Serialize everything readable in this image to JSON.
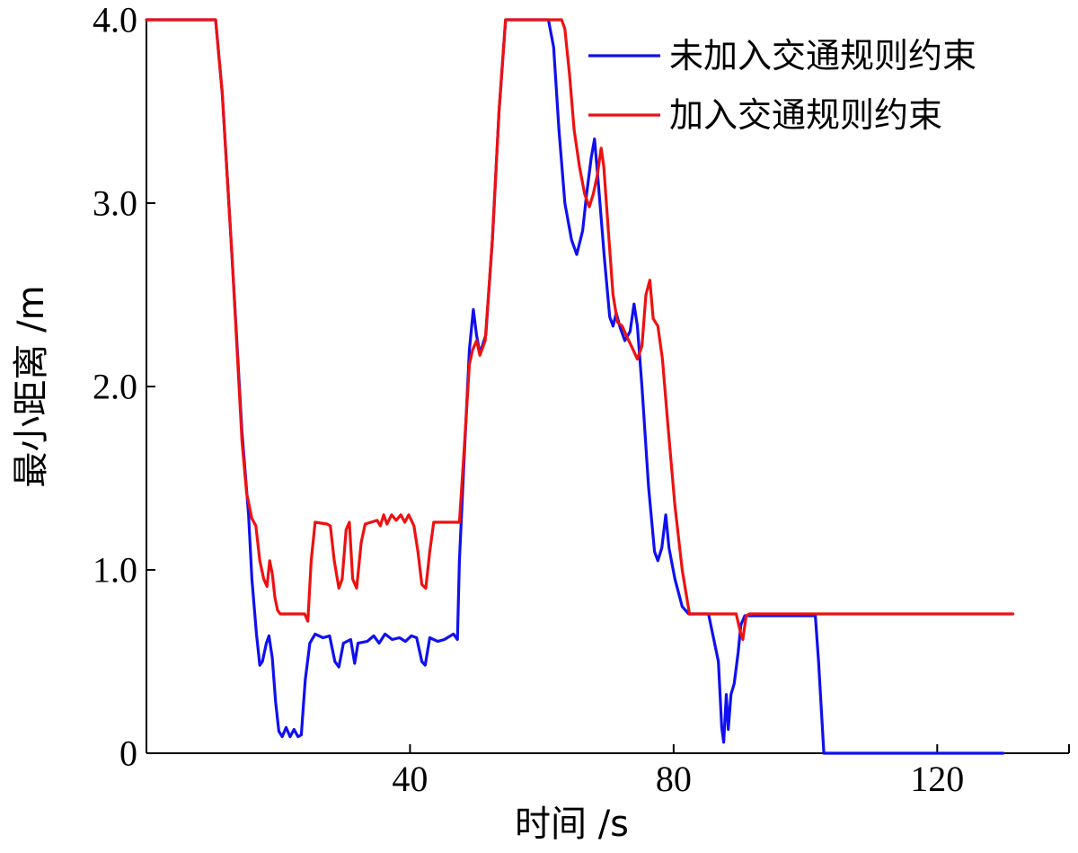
{
  "chart_data": {
    "type": "line",
    "xlabel": "时间 /s",
    "ylabel": "最小距离 /m",
    "xlim": [
      0,
      140
    ],
    "ylim": [
      0,
      4.0
    ],
    "x_ticks": [
      40,
      80,
      120
    ],
    "x_tick_labels": [
      "40",
      "80",
      "120"
    ],
    "y_ticks": [
      0,
      1.0,
      2.0,
      3.0,
      4.0
    ],
    "y_tick_labels": [
      "0",
      "1.0",
      "2.0",
      "3.0",
      "4.0"
    ],
    "grid": false,
    "legend_position": "top-right",
    "series": [
      {
        "name": "未加入交通规则约束",
        "color": "#1010f0",
        "points": [
          [
            0,
            4.0
          ],
          [
            10.5,
            4.0
          ],
          [
            11.5,
            3.6
          ],
          [
            13,
            2.7
          ],
          [
            14.5,
            1.75
          ],
          [
            15.5,
            1.3
          ],
          [
            16,
            0.95
          ],
          [
            16.7,
            0.65
          ],
          [
            17.2,
            0.48
          ],
          [
            17.6,
            0.5
          ],
          [
            18.2,
            0.6
          ],
          [
            18.6,
            0.64
          ],
          [
            19.1,
            0.52
          ],
          [
            19.6,
            0.28
          ],
          [
            20.1,
            0.12
          ],
          [
            20.6,
            0.09
          ],
          [
            21.2,
            0.14
          ],
          [
            21.8,
            0.09
          ],
          [
            22.4,
            0.13
          ],
          [
            23,
            0.09
          ],
          [
            23.5,
            0.1
          ],
          [
            24.1,
            0.4
          ],
          [
            24.8,
            0.6
          ],
          [
            25.6,
            0.65
          ],
          [
            26.8,
            0.63
          ],
          [
            27.8,
            0.64
          ],
          [
            28.6,
            0.5
          ],
          [
            29.2,
            0.47
          ],
          [
            29.9,
            0.6
          ],
          [
            31,
            0.62
          ],
          [
            31.6,
            0.49
          ],
          [
            32.1,
            0.6
          ],
          [
            33.5,
            0.61
          ],
          [
            34.5,
            0.64
          ],
          [
            35.3,
            0.6
          ],
          [
            36.2,
            0.65
          ],
          [
            37.3,
            0.62
          ],
          [
            38.4,
            0.63
          ],
          [
            39.3,
            0.61
          ],
          [
            40.2,
            0.64
          ],
          [
            41,
            0.63
          ],
          [
            41.8,
            0.5
          ],
          [
            42.3,
            0.48
          ],
          [
            43,
            0.63
          ],
          [
            44.2,
            0.61
          ],
          [
            45.2,
            0.62
          ],
          [
            46.6,
            0.65
          ],
          [
            47.2,
            0.62
          ],
          [
            47.5,
            1.05
          ],
          [
            48.2,
            1.6
          ],
          [
            49,
            2.2
          ],
          [
            49.6,
            2.42
          ],
          [
            50.1,
            2.28
          ],
          [
            50.6,
            2.18
          ],
          [
            51.5,
            2.28
          ],
          [
            52.5,
            2.8
          ],
          [
            53.5,
            3.5
          ],
          [
            54.5,
            4.0
          ],
          [
            61,
            4.0
          ],
          [
            61.8,
            3.85
          ],
          [
            62.6,
            3.4
          ],
          [
            63.5,
            3.0
          ],
          [
            64.5,
            2.8
          ],
          [
            65.3,
            2.72
          ],
          [
            66.2,
            2.85
          ],
          [
            66.8,
            3.05
          ],
          [
            67.5,
            3.25
          ],
          [
            68,
            3.35
          ],
          [
            68.6,
            3.1
          ],
          [
            69.5,
            2.7
          ],
          [
            70.3,
            2.38
          ],
          [
            70.8,
            2.33
          ],
          [
            71.3,
            2.4
          ],
          [
            71.9,
            2.32
          ],
          [
            72.6,
            2.25
          ],
          [
            73.4,
            2.3
          ],
          [
            74,
            2.45
          ],
          [
            74.5,
            2.33
          ],
          [
            75.2,
            2.0
          ],
          [
            76.2,
            1.45
          ],
          [
            77.1,
            1.1
          ],
          [
            77.6,
            1.05
          ],
          [
            78.2,
            1.12
          ],
          [
            78.8,
            1.3
          ],
          [
            79.3,
            1.12
          ],
          [
            80.2,
            0.95
          ],
          [
            81.3,
            0.8
          ],
          [
            82.3,
            0.76
          ],
          [
            85.3,
            0.76
          ],
          [
            86.1,
            0.62
          ],
          [
            86.8,
            0.5
          ],
          [
            87.3,
            0.14
          ],
          [
            87.6,
            0.06
          ],
          [
            88,
            0.32
          ],
          [
            88.3,
            0.13
          ],
          [
            88.7,
            0.32
          ],
          [
            89.2,
            0.38
          ],
          [
            89.8,
            0.55
          ],
          [
            90.2,
            0.7
          ],
          [
            90.8,
            0.75
          ],
          [
            101.5,
            0.75
          ],
          [
            102,
            0.5
          ],
          [
            102.8,
            0.0
          ],
          [
            130,
            0.0
          ]
        ]
      },
      {
        "name": "加入交通规则约束",
        "color": "#ee1111",
        "points": [
          [
            0,
            4.0
          ],
          [
            10.5,
            4.0
          ],
          [
            11.5,
            3.6
          ],
          [
            13,
            2.7
          ],
          [
            14.5,
            1.7
          ],
          [
            15.2,
            1.42
          ],
          [
            16,
            1.28
          ],
          [
            16.6,
            1.24
          ],
          [
            17.2,
            1.05
          ],
          [
            17.8,
            0.95
          ],
          [
            18.3,
            0.91
          ],
          [
            18.7,
            1.05
          ],
          [
            19.1,
            0.98
          ],
          [
            19.5,
            0.85
          ],
          [
            19.9,
            0.78
          ],
          [
            20.3,
            0.76
          ],
          [
            24,
            0.76
          ],
          [
            24.5,
            0.72
          ],
          [
            25,
            1.05
          ],
          [
            25.6,
            1.26
          ],
          [
            27.4,
            1.25
          ],
          [
            27.9,
            1.24
          ],
          [
            28.5,
            1.05
          ],
          [
            29.2,
            0.9
          ],
          [
            29.7,
            0.95
          ],
          [
            30.3,
            1.22
          ],
          [
            30.8,
            1.26
          ],
          [
            31.3,
            0.95
          ],
          [
            31.9,
            0.9
          ],
          [
            32.6,
            1.15
          ],
          [
            33.2,
            1.25
          ],
          [
            35,
            1.27
          ],
          [
            35.5,
            1.24
          ],
          [
            36,
            1.3
          ],
          [
            36.5,
            1.25
          ],
          [
            37.2,
            1.3
          ],
          [
            37.9,
            1.27
          ],
          [
            38.6,
            1.3
          ],
          [
            39.2,
            1.26
          ],
          [
            39.8,
            1.3
          ],
          [
            40.6,
            1.24
          ],
          [
            41.2,
            1.1
          ],
          [
            41.8,
            0.92
          ],
          [
            42.4,
            0.9
          ],
          [
            43,
            1.1
          ],
          [
            43.6,
            1.26
          ],
          [
            47.5,
            1.26
          ],
          [
            48.2,
            1.65
          ],
          [
            49,
            2.12
          ],
          [
            49.5,
            2.2
          ],
          [
            50.1,
            2.25
          ],
          [
            50.6,
            2.17
          ],
          [
            51.4,
            2.25
          ],
          [
            52.5,
            2.8
          ],
          [
            53.5,
            3.5
          ],
          [
            54.5,
            4.0
          ],
          [
            63,
            4.0
          ],
          [
            63.5,
            3.95
          ],
          [
            64.2,
            3.7
          ],
          [
            64.9,
            3.4
          ],
          [
            65.7,
            3.2
          ],
          [
            66.5,
            3.05
          ],
          [
            67.2,
            2.98
          ],
          [
            67.8,
            3.05
          ],
          [
            68.4,
            3.15
          ],
          [
            69,
            3.3
          ],
          [
            69.4,
            3.2
          ],
          [
            70.1,
            2.85
          ],
          [
            70.8,
            2.5
          ],
          [
            71.5,
            2.35
          ],
          [
            72.2,
            2.33
          ],
          [
            72.8,
            2.28
          ],
          [
            73.6,
            2.22
          ],
          [
            74.5,
            2.15
          ],
          [
            75.2,
            2.22
          ],
          [
            75.8,
            2.5
          ],
          [
            76.4,
            2.58
          ],
          [
            76.9,
            2.37
          ],
          [
            77.6,
            2.33
          ],
          [
            78.3,
            2.15
          ],
          [
            79.1,
            1.8
          ],
          [
            80.2,
            1.35
          ],
          [
            81.3,
            1.0
          ],
          [
            82.4,
            0.76
          ],
          [
            89.5,
            0.76
          ],
          [
            90.2,
            0.65
          ],
          [
            90.5,
            0.62
          ],
          [
            91,
            0.75
          ],
          [
            91.5,
            0.76
          ],
          [
            131.5,
            0.76
          ]
        ]
      }
    ]
  }
}
